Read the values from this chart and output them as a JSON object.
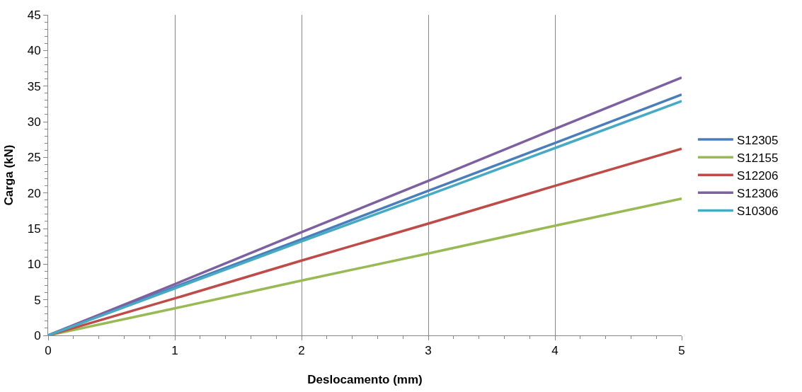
{
  "chart_data": {
    "type": "line",
    "xlabel": "Deslocamento (mm)",
    "ylabel": "Carga (kN)",
    "x": [
      0,
      1,
      2,
      3,
      4,
      5
    ],
    "series": [
      {
        "name": "S12305",
        "color": "#4a7ebb",
        "values": [
          0,
          6.8,
          13.5,
          20.3,
          27.0,
          33.8
        ]
      },
      {
        "name": "S12155",
        "color": "#98b954",
        "values": [
          0,
          3.8,
          7.7,
          11.5,
          15.4,
          19.2
        ]
      },
      {
        "name": "S12206",
        "color": "#be4b48",
        "values": [
          0,
          5.2,
          10.5,
          15.7,
          21.0,
          26.2
        ]
      },
      {
        "name": "S12306",
        "color": "#7d60a0",
        "values": [
          0,
          7.2,
          14.5,
          21.7,
          29.0,
          36.2
        ]
      },
      {
        "name": "S10306",
        "color": "#46aac5",
        "values": [
          0,
          6.6,
          13.2,
          19.7,
          26.3,
          32.9
        ]
      }
    ],
    "xlim": [
      0,
      5
    ],
    "xticks": [
      0,
      1,
      2,
      3,
      4,
      5
    ],
    "ylim": [
      0,
      45
    ],
    "yticks": [
      0,
      5,
      10,
      15,
      20,
      25,
      30,
      35,
      40,
      45
    ],
    "grid": "x",
    "legend": "right",
    "marker": "none",
    "line_style": "solid"
  }
}
